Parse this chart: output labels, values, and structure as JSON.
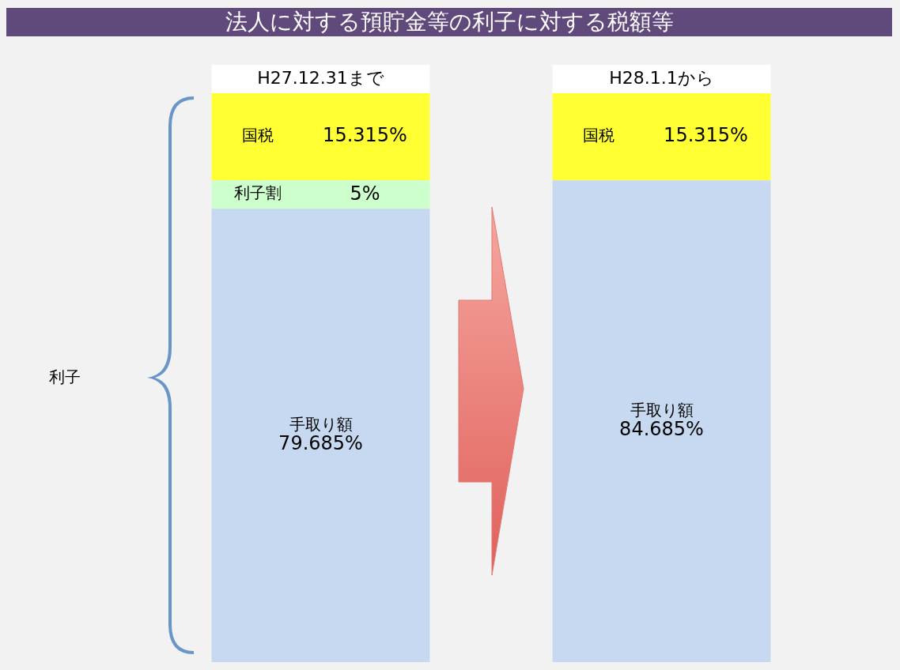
{
  "chart_data": {
    "type": "bar",
    "title": "法人に対する預貯金等の利子に対する税額等",
    "stacked": true,
    "legend": false,
    "tick_labels": "x",
    "categories": [
      "H27.12.31まで",
      "H28.1.1から"
    ],
    "series": [
      {
        "name": "手取り額",
        "color": "#c6d9f0",
        "values": [
          79.685,
          84.685
        ],
        "value_labels": [
          "79.685%",
          "84.685%"
        ]
      },
      {
        "name": "利子割",
        "color": "#ccffcc",
        "values": [
          5,
          null
        ],
        "value_labels": [
          "5%",
          null
        ]
      },
      {
        "name": "国税",
        "color": "#ffff33",
        "values": [
          15.315,
          15.315
        ],
        "value_labels": [
          "15.315%",
          "15.315%"
        ]
      }
    ],
    "annotations": [
      "利子"
    ]
  }
}
